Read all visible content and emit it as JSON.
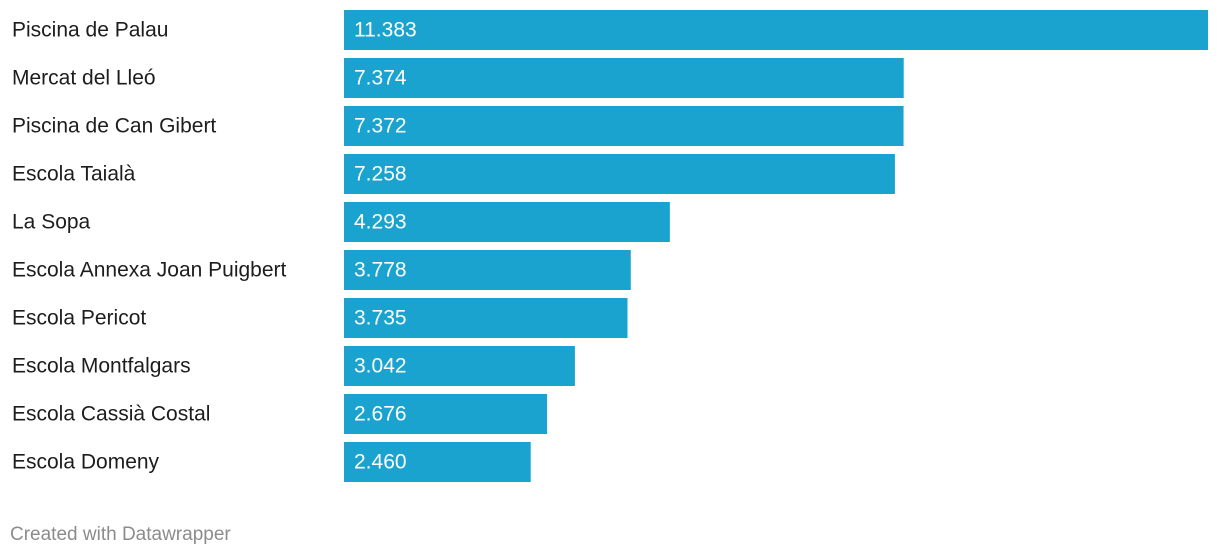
{
  "chart_data": {
    "type": "bar",
    "orientation": "horizontal",
    "color": "#1aa3cf",
    "categories": [
      "Piscina de Palau",
      "Mercat del Lleó",
      "Piscina de Can Gibert",
      "Escola Taialà",
      "La Sopa",
      "Escola Annexa Joan Puigbert",
      "Escola Pericot",
      "Escola Montfalgars",
      "Escola Cassià Costal",
      "Escola Domeny"
    ],
    "values": [
      11383,
      7374,
      7372,
      7258,
      4293,
      3778,
      3735,
      3042,
      2676,
      2460
    ],
    "value_labels": [
      "11.383",
      "7.374",
      "7.372",
      "7.258",
      "4.293",
      "3.778",
      "3.735",
      "3.042",
      "2.676",
      "2.460"
    ],
    "credit": "Created with Datawrapper"
  }
}
